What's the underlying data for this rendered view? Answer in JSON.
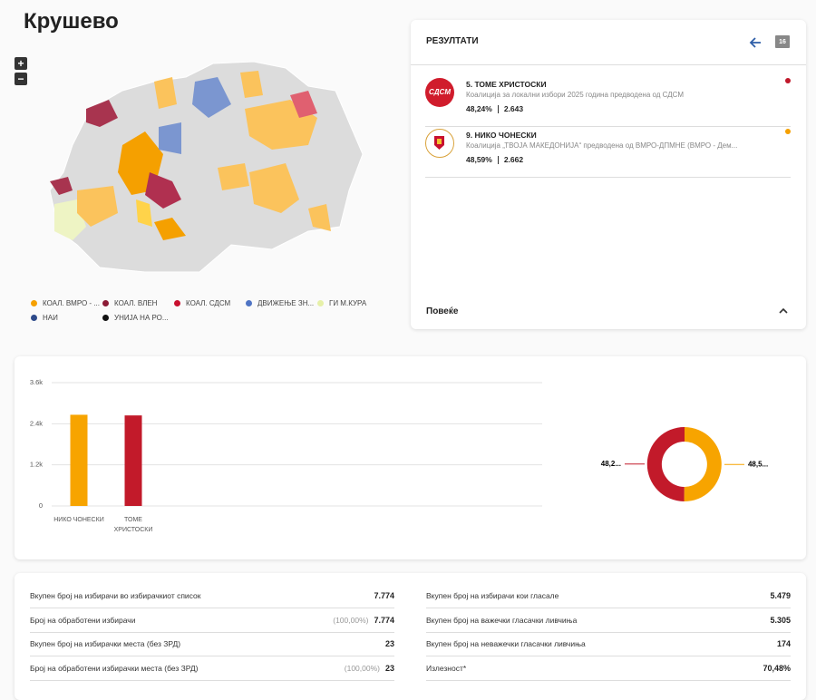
{
  "title": "Крушево",
  "map": {
    "zoom_in": "+",
    "zoom_out": "−",
    "legend": [
      {
        "label": "КОАЛ. ВМРО - ...",
        "color": "#f5a000"
      },
      {
        "label": "КОАЛ. ВЛЕН",
        "color": "#8b1a35"
      },
      {
        "label": "КОАЛ. СДСМ",
        "color": "#c8102e"
      },
      {
        "label": "ДВИЖЕЊЕ ЗН...",
        "color": "#4f74c4"
      },
      {
        "label": "ГИ М.КУРА",
        "color": "#e6f0a8"
      },
      {
        "label": "НАИ",
        "color": "#2d4a8a"
      },
      {
        "label": "УНИЈА НА РО...",
        "color": "#111111"
      }
    ]
  },
  "results": {
    "header": "РЕЗУЛТАТИ",
    "badge": "16",
    "more": "Повеќе",
    "candidates": [
      {
        "name": "5. ТОМЕ ХРИСТОСКИ",
        "coalition": "Коалиција за локални избори 2025 година предводена од СДСМ",
        "percent": "48,24%",
        "votes": "2.643",
        "logo": "СДСМ",
        "color": "#c0182a"
      },
      {
        "name": "9. НИКО ЧОНЕСКИ",
        "coalition": "Коалиција „ТВОЈА МАКЕДОНИЈА“ предводена од ВМРО-ДПМНЕ (ВМРО - Дем...",
        "percent": "48,59%",
        "votes": "2.662",
        "color": "#f5a000"
      }
    ]
  },
  "chart_data": [
    {
      "type": "bar",
      "categories": [
        "НИКО ЧОНЕСКИ",
        "ТОМЕ ХРИСТОСКИ"
      ],
      "values": [
        2662,
        2643
      ],
      "colors": [
        "#f7a400",
        "#c21a2a"
      ],
      "ylim": [
        0,
        3600
      ],
      "yticks": [
        0,
        {
          "value": 1200,
          "label": "1.2k"
        },
        {
          "value": 2400,
          "label": "2.4k"
        },
        {
          "value": 3600,
          "label": "3.6k"
        }
      ],
      "grid": true
    },
    {
      "type": "pie",
      "values": [
        48.59,
        48.24
      ],
      "value_labels": [
        "48,5...",
        "48,2..."
      ],
      "colors": [
        "#f7a400",
        "#c21a2a"
      ]
    }
  ],
  "stats": {
    "left": [
      {
        "label": "Вкупен број на избирачи во избирачкиот список",
        "value": "7.774"
      },
      {
        "label": "Број на обработени избирачи",
        "extra": "(100,00%)",
        "value": "7.774"
      },
      {
        "label": "Вкупен број на избирачки места (без ЗРД)",
        "value": "23"
      },
      {
        "label": "Број на обработени избирачки места (без ЗРД)",
        "extra": "(100,00%)",
        "value": "23"
      }
    ],
    "right": [
      {
        "label": "Вкупен број на избирачи кои гласале",
        "value": "5.479"
      },
      {
        "label": "Вкупен број на важечки гласачки ливчиња",
        "value": "5.305"
      },
      {
        "label": "Вкупен број на неважечки гласачки ливчиња",
        "value": "174"
      },
      {
        "label": "Излезност*",
        "value": "70,48%"
      }
    ]
  }
}
